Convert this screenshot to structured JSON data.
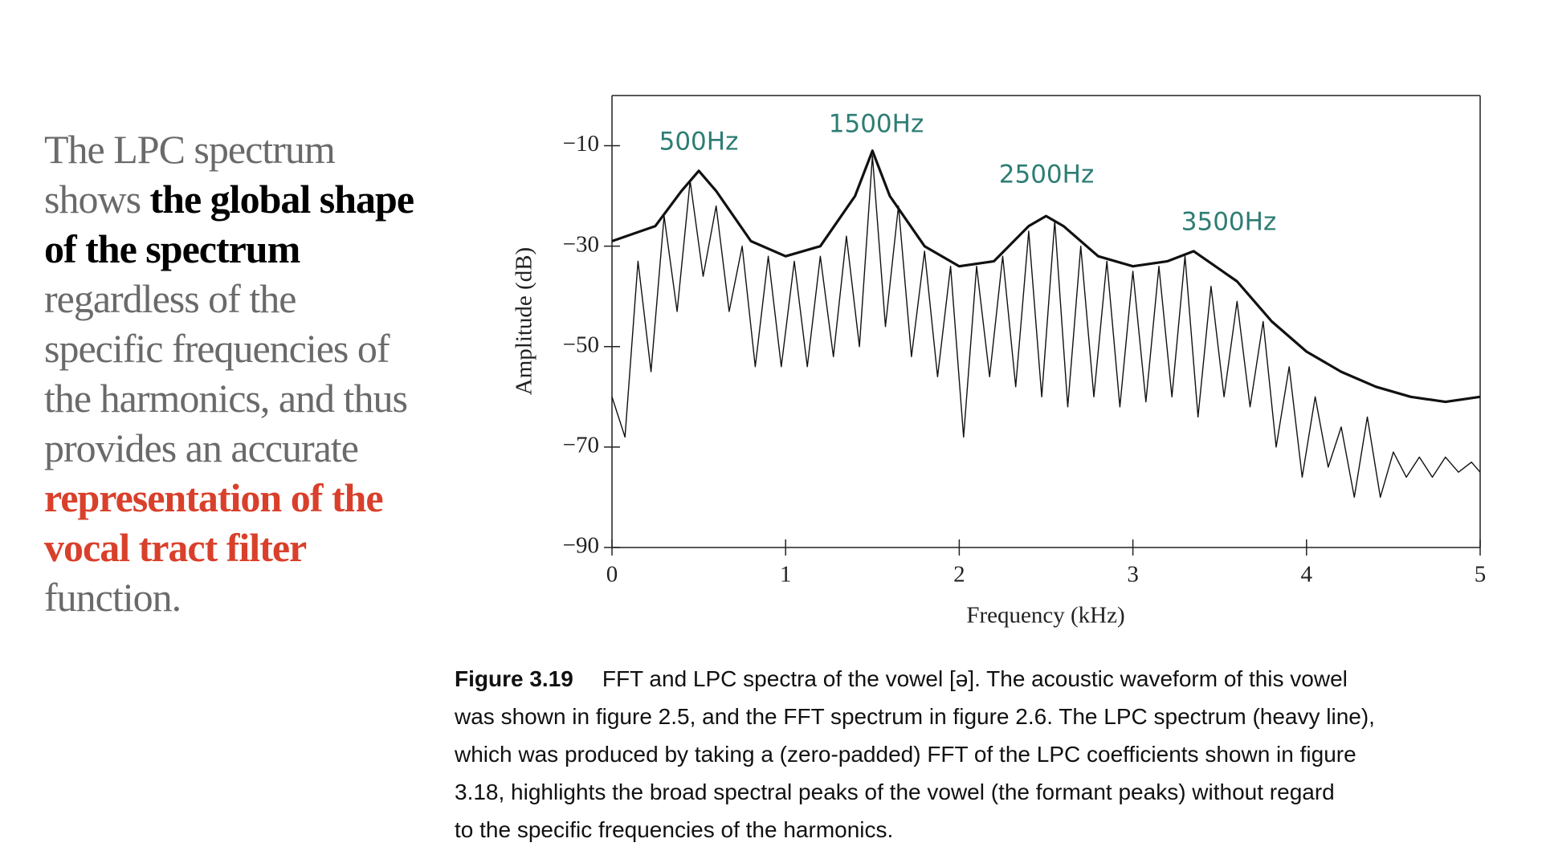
{
  "slide_text": {
    "segments": [
      {
        "text": "The LPC spectrum shows ",
        "style": "plain"
      },
      {
        "text": "the global shape of the spectrum",
        "style": "bold"
      },
      {
        "text": " regardless of the specific frequencies of the harmonics, and thus provides an accurate ",
        "style": "plain"
      },
      {
        "text": "representation of the vocal tract filter",
        "style": "highlight"
      },
      {
        "text": " function.",
        "style": "plain"
      }
    ]
  },
  "caption": {
    "label": "Figure 3.19",
    "lines": [
      "FFT and LPC spectra of the vowel [ə]. The acoustic waveform of this vowel",
      "was shown in figure 2.5, and the FFT spectrum in figure 2.6. The LPC spectrum (heavy line),",
      "which was produced by taking a (zero-padded) FFT of the LPC coefficients shown in figure",
      "3.18, highlights the broad spectral peaks of the vowel (the formant peaks) without regard",
      "to the specific frequencies of the harmonics."
    ]
  },
  "chart_data": {
    "type": "line",
    "x_label": "Frequency (kHz)",
    "y_label": "Amplitude (dB)",
    "xlim": [
      0,
      5
    ],
    "ylim": [
      -90,
      0
    ],
    "xticks": [
      0,
      1,
      2,
      3,
      4,
      5
    ],
    "yticks": [
      {
        "value": -10,
        "label": "−10"
      },
      {
        "value": -30,
        "label": "−30"
      },
      {
        "value": -50,
        "label": "−50"
      },
      {
        "value": -70,
        "label": "−70"
      },
      {
        "value": -90,
        "label": "−90"
      }
    ],
    "annotations": [
      "500Hz",
      "1500Hz",
      "2500Hz",
      "3500Hz"
    ],
    "series": [
      {
        "color": "#111111",
        "x": [
          0,
          0.075,
          0.15,
          0.225,
          0.3,
          0.375,
          0.45,
          0.525,
          0.6,
          0.675,
          0.75,
          0.825,
          0.9,
          0.975,
          1.05,
          1.125,
          1.2,
          1.275,
          1.35,
          1.425,
          1.5,
          1.575,
          1.65,
          1.725,
          1.8,
          1.875,
          1.95,
          2.025,
          2.1,
          2.175,
          2.25,
          2.325,
          2.4,
          2.475,
          2.55,
          2.625,
          2.7,
          2.775,
          2.85,
          2.925,
          3.0,
          3.075,
          3.15,
          3.225,
          3.3,
          3.375,
          3.45,
          3.525,
          3.6,
          3.675,
          3.75,
          3.825,
          3.9,
          3.975,
          4.05,
          4.125,
          4.2,
          4.275,
          4.35,
          4.425,
          4.5,
          4.575,
          4.65,
          4.725,
          4.8,
          4.875,
          4.95,
          5.0
        ],
        "values": [
          -60,
          -68,
          -33,
          -55,
          -24,
          -43,
          -17,
          -36,
          -22,
          -43,
          -30,
          -54,
          -32,
          -54,
          -33,
          -54,
          -32,
          -52,
          -28,
          -50,
          -12,
          -46,
          -22,
          -52,
          -31,
          -56,
          -34,
          -68,
          -34,
          -56,
          -32,
          -58,
          -27,
          -60,
          -25,
          -62,
          -30,
          -60,
          -33,
          -62,
          -35,
          -61,
          -34,
          -60,
          -32,
          -64,
          -38,
          -60,
          -41,
          -62,
          -45,
          -70,
          -54,
          -76,
          -60,
          -74,
          -66,
          -80,
          -64,
          -80,
          -71,
          -76,
          -72,
          -76,
          -72,
          -75,
          -73,
          -75
        ]
      },
      {
        "color": "#111111",
        "x": [
          0,
          0.25,
          0.4,
          0.5,
          0.6,
          0.8,
          1.0,
          1.2,
          1.4,
          1.5,
          1.6,
          1.8,
          2.0,
          2.2,
          2.4,
          2.5,
          2.6,
          2.8,
          3.0,
          3.2,
          3.35,
          3.6,
          3.8,
          4.0,
          4.2,
          4.4,
          4.6,
          4.8,
          5.0
        ],
        "values": [
          -29,
          -26,
          -19,
          -15,
          -19,
          -29,
          -32,
          -30,
          -20,
          -11,
          -20,
          -30,
          -34,
          -33,
          -26,
          -24,
          -26,
          -32,
          -34,
          -33,
          -31,
          -37,
          -45,
          -51,
          -55,
          -58,
          -60,
          -61,
          -60
        ]
      }
    ]
  }
}
